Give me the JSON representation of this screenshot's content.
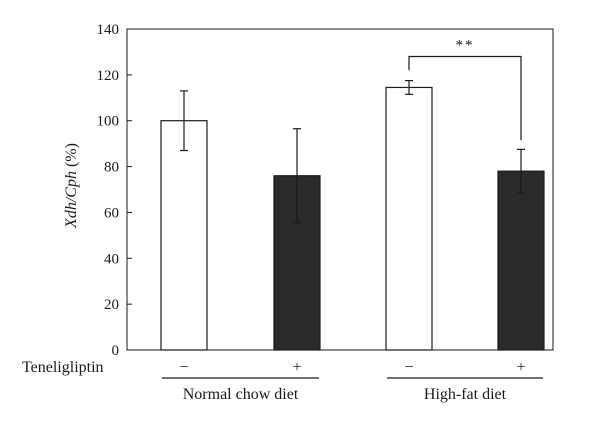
{
  "chart_data": {
    "type": "bar",
    "ylabel_main": "Xdh/Cph",
    "ylabel_unit": " (%)",
    "ylim": [
      0,
      140
    ],
    "yticks": [
      0,
      20,
      40,
      60,
      80,
      100,
      120,
      140
    ],
    "grid": false,
    "row_label": "Teneligliptin",
    "groups": [
      {
        "label": "Normal chow diet",
        "categories": [
          0,
          1
        ]
      },
      {
        "label": "High-fat diet",
        "categories": [
          2,
          3
        ]
      }
    ],
    "categories": [
      "−",
      "+",
      "−",
      "+"
    ],
    "values": [
      100,
      76,
      114.5,
      78
    ],
    "errors": [
      13,
      20.5,
      3,
      9.5
    ],
    "bar_colors": [
      "#ffffff",
      "#2b2b2b",
      "#ffffff",
      "#2b2b2b"
    ],
    "significance": [
      {
        "from": 2,
        "to": 3,
        "label": "**",
        "y": 128
      }
    ]
  }
}
